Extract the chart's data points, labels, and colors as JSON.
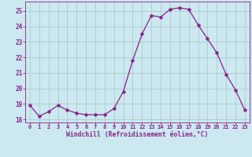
{
  "x": [
    0,
    1,
    2,
    3,
    4,
    5,
    6,
    7,
    8,
    9,
    10,
    11,
    12,
    13,
    14,
    15,
    16,
    17,
    18,
    19,
    20,
    21,
    22,
    23
  ],
  "y": [
    18.9,
    18.2,
    18.5,
    18.9,
    18.6,
    18.4,
    18.3,
    18.3,
    18.3,
    18.7,
    19.8,
    21.8,
    23.5,
    24.7,
    24.6,
    25.1,
    25.2,
    25.1,
    24.1,
    23.2,
    22.3,
    20.9,
    19.9,
    18.6
  ],
  "line_color": "#882288",
  "marker": "D",
  "marker_size": 2.5,
  "bg_color": "#cce8f0",
  "grid_color": "#aacccc",
  "xlabel": "Windchill (Refroidissement éolien,°C)",
  "xlabel_color": "#882288",
  "tick_color": "#882288",
  "ylim": [
    17.8,
    25.6
  ],
  "xlim": [
    -0.5,
    23.5
  ],
  "yticks": [
    18,
    19,
    20,
    21,
    22,
    23,
    24,
    25
  ],
  "xticks": [
    0,
    1,
    2,
    3,
    4,
    5,
    6,
    7,
    8,
    9,
    10,
    11,
    12,
    13,
    14,
    15,
    16,
    17,
    18,
    19,
    20,
    21,
    22,
    23
  ]
}
